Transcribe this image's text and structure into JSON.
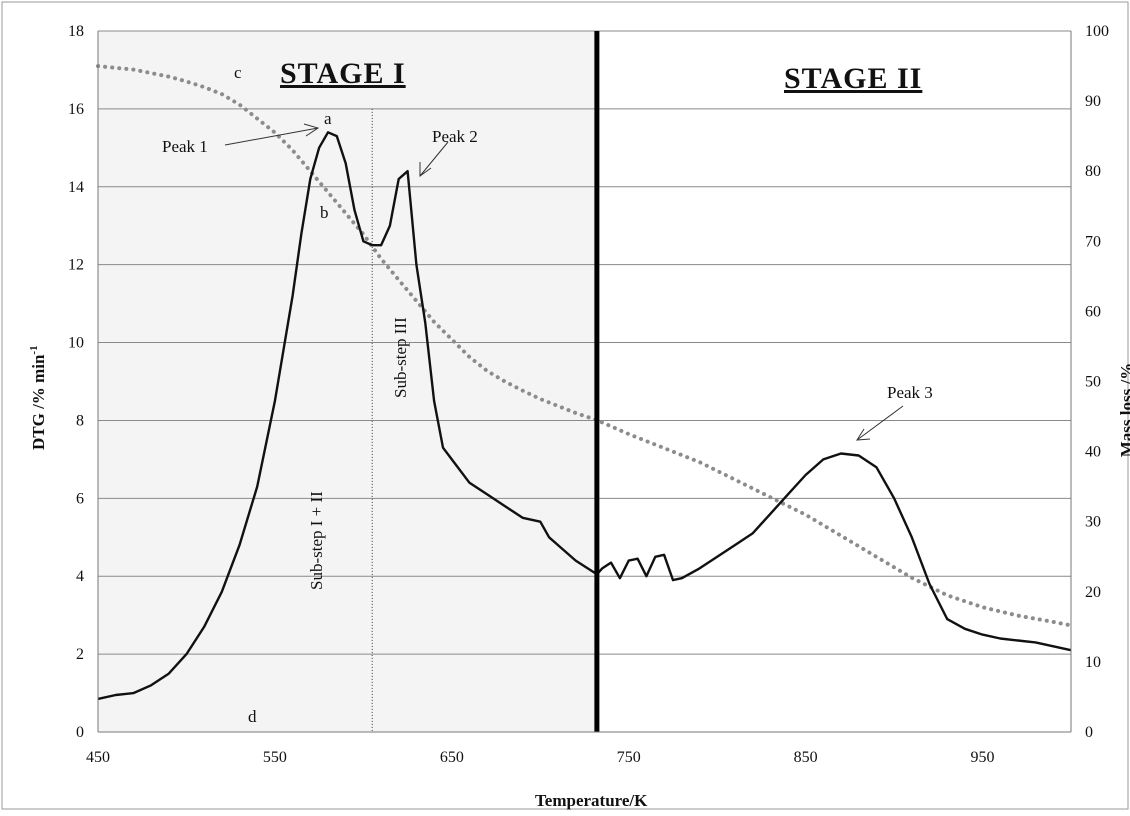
{
  "chart_data": {
    "type": "line",
    "xlabel": "Temperature/K",
    "ylabel": "DTG /% min",
    "ylabel_sup": "-1",
    "y2label": "Mass loss /%",
    "xlim": [
      450,
      1000
    ],
    "ylim": [
      0,
      18
    ],
    "y2lim": [
      0,
      100
    ],
    "x_ticks": [
      "450",
      "550",
      "650",
      "750",
      "850",
      "950"
    ],
    "y_ticks": [
      "0",
      "2",
      "4",
      "6",
      "8",
      "10",
      "12",
      "14",
      "16",
      "18"
    ],
    "y2_ticks": [
      "0",
      "10",
      "20",
      "30",
      "40",
      "50",
      "60",
      "70",
      "80",
      "90",
      "100"
    ],
    "grid": "horizontal",
    "stage_divider_x": 732,
    "substep_divider_x": 605,
    "stage_I_shading": "#f4f4f4",
    "series": [
      {
        "name": "DTG",
        "axis": "left",
        "style": "solid",
        "color": "#111111",
        "points": [
          [
            450,
            0.85
          ],
          [
            460,
            0.95
          ],
          [
            470,
            1.0
          ],
          [
            480,
            1.2
          ],
          [
            490,
            1.5
          ],
          [
            500,
            2.0
          ],
          [
            510,
            2.7
          ],
          [
            520,
            3.6
          ],
          [
            530,
            4.8
          ],
          [
            540,
            6.3
          ],
          [
            550,
            8.5
          ],
          [
            560,
            11.2
          ],
          [
            565,
            12.8
          ],
          [
            570,
            14.2
          ],
          [
            575,
            15.0
          ],
          [
            580,
            15.4
          ],
          [
            585,
            15.3
          ],
          [
            590,
            14.6
          ],
          [
            595,
            13.4
          ],
          [
            600,
            12.6
          ],
          [
            605,
            12.5
          ],
          [
            610,
            12.5
          ],
          [
            615,
            13.0
          ],
          [
            620,
            14.2
          ],
          [
            625,
            14.4
          ],
          [
            630,
            12.0
          ],
          [
            635,
            10.5
          ],
          [
            640,
            8.5
          ],
          [
            645,
            7.3
          ],
          [
            650,
            7.0
          ],
          [
            660,
            6.4
          ],
          [
            670,
            6.1
          ],
          [
            680,
            5.8
          ],
          [
            690,
            5.5
          ],
          [
            700,
            5.4
          ],
          [
            705,
            5.0
          ],
          [
            710,
            4.8
          ],
          [
            720,
            4.4
          ],
          [
            732,
            4.05
          ],
          [
            735,
            4.2
          ],
          [
            740,
            4.35
          ],
          [
            745,
            3.95
          ],
          [
            750,
            4.4
          ],
          [
            755,
            4.45
          ],
          [
            760,
            4.0
          ],
          [
            765,
            4.5
          ],
          [
            770,
            4.55
          ],
          [
            775,
            3.9
          ],
          [
            780,
            3.95
          ],
          [
            790,
            4.2
          ],
          [
            800,
            4.5
          ],
          [
            810,
            4.8
          ],
          [
            820,
            5.1
          ],
          [
            830,
            5.6
          ],
          [
            840,
            6.1
          ],
          [
            850,
            6.6
          ],
          [
            860,
            7.0
          ],
          [
            870,
            7.15
          ],
          [
            880,
            7.1
          ],
          [
            890,
            6.8
          ],
          [
            900,
            6.0
          ],
          [
            910,
            5.0
          ],
          [
            920,
            3.8
          ],
          [
            930,
            2.9
          ],
          [
            940,
            2.65
          ],
          [
            950,
            2.5
          ],
          [
            960,
            2.4
          ],
          [
            970,
            2.35
          ],
          [
            980,
            2.3
          ],
          [
            990,
            2.2
          ],
          [
            1000,
            2.1
          ]
        ]
      },
      {
        "name": "Mass loss",
        "axis": "right",
        "style": "dotted",
        "color": "#8c8c8c",
        "points": [
          [
            450,
            95
          ],
          [
            470,
            94.5
          ],
          [
            490,
            93.5
          ],
          [
            500,
            92.8
          ],
          [
            510,
            92
          ],
          [
            520,
            91
          ],
          [
            530,
            89.5
          ],
          [
            540,
            87.5
          ],
          [
            550,
            85.5
          ],
          [
            560,
            83
          ],
          [
            570,
            80
          ],
          [
            580,
            77
          ],
          [
            590,
            74
          ],
          [
            600,
            71
          ],
          [
            610,
            67.5
          ],
          [
            620,
            64.5
          ],
          [
            630,
            61.5
          ],
          [
            640,
            58.5
          ],
          [
            650,
            56
          ],
          [
            660,
            53.5
          ],
          [
            670,
            51.5
          ],
          [
            680,
            50
          ],
          [
            690,
            48.7
          ],
          [
            700,
            47.5
          ],
          [
            710,
            46.5
          ],
          [
            720,
            45.5
          ],
          [
            732,
            44.5
          ],
          [
            750,
            42.5
          ],
          [
            770,
            40.5
          ],
          [
            790,
            38.5
          ],
          [
            810,
            36
          ],
          [
            830,
            33.5
          ],
          [
            850,
            31
          ],
          [
            870,
            28
          ],
          [
            890,
            25
          ],
          [
            910,
            22
          ],
          [
            930,
            19.5
          ],
          [
            950,
            17.8
          ],
          [
            970,
            16.6
          ],
          [
            990,
            15.7
          ],
          [
            1000,
            15.2
          ]
        ]
      }
    ],
    "annotations": {
      "stage1": "STAGE I",
      "stage2": "STAGE II",
      "peak1": "Peak 1",
      "peak2": "Peak 2",
      "peak3": "Peak 3",
      "substep12": "Sub-step I + II",
      "substep3": "Sub-step  III",
      "label_a": "a",
      "label_b": "b",
      "label_c": "c",
      "label_d": "d"
    }
  }
}
